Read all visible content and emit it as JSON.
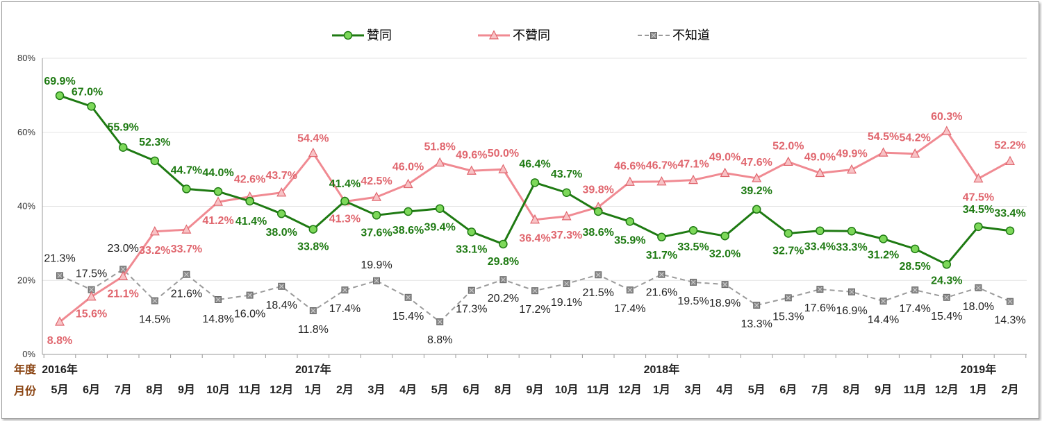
{
  "chart_data": {
    "type": "line",
    "categories": [
      "5月",
      "6月",
      "7月",
      "8月",
      "9月",
      "10月",
      "11月",
      "12月",
      "1月",
      "2月",
      "3月",
      "4月",
      "5月",
      "6月",
      "8月",
      "9月",
      "10月",
      "11月",
      "12月",
      "1月",
      "3月",
      "4月",
      "5月",
      "6月",
      "7月",
      "8月",
      "9月",
      "11月",
      "12月",
      "1月",
      "2月"
    ],
    "years": [
      {
        "label": "2016年",
        "index": 0
      },
      {
        "label": "2017年",
        "index": 8
      },
      {
        "label": "2018年",
        "index": 19
      },
      {
        "label": "2019年",
        "index": 29
      }
    ],
    "row_labels": {
      "year": "年度",
      "month": "月份"
    },
    "yticks": [
      "0%",
      "20%",
      "40%",
      "60%",
      "80%"
    ],
    "ylim": [
      0,
      80
    ],
    "grid": true,
    "legend_position": "top",
    "series": [
      {
        "name": "贊同",
        "color": "#1e7a12",
        "marker": "circle",
        "values": [
          69.9,
          67.0,
          55.9,
          52.3,
          44.7,
          44.0,
          41.4,
          38.0,
          33.8,
          41.4,
          37.6,
          38.6,
          39.4,
          33.1,
          29.8,
          46.4,
          43.7,
          38.6,
          35.9,
          31.7,
          33.5,
          32.0,
          39.2,
          32.7,
          33.4,
          33.3,
          31.2,
          28.5,
          24.3,
          34.5,
          33.4
        ],
        "labels": [
          "69.9%",
          "67.0%",
          "55.9%",
          "52.3%",
          "44.7%",
          "44.0%",
          "41.4%",
          "38.0%",
          "33.8%",
          "41.4%",
          "37.6%",
          "38.6%",
          "39.4%",
          "33.1%",
          "29.8%",
          "46.4%",
          "43.7%",
          "38.6%",
          "35.9%",
          "31.7%",
          "33.5%",
          "32.0%",
          "39.2%",
          "32.7%",
          "33.4%",
          "33.3%",
          "31.2%",
          "28.5%",
          "24.3%",
          "34.5%",
          "33.4%"
        ]
      },
      {
        "name": "不贊同",
        "color": "#f08a92",
        "marker": "triangle",
        "values": [
          8.8,
          15.6,
          21.1,
          33.2,
          33.7,
          41.2,
          42.6,
          43.7,
          54.4,
          41.3,
          42.5,
          46.0,
          51.8,
          49.6,
          50.0,
          36.4,
          37.3,
          39.8,
          46.6,
          46.7,
          47.1,
          49.0,
          47.6,
          52.0,
          49.0,
          49.9,
          54.5,
          54.2,
          60.3,
          47.5,
          52.2
        ],
        "labels": [
          "8.8%",
          "15.6%",
          "21.1%",
          "33.2%",
          "33.7%",
          "41.2%",
          "42.6%",
          "43.7%",
          "54.4%",
          "41.3%",
          "42.5%",
          "46.0%",
          "51.8%",
          "49.6%",
          "50.0%",
          "36.4%",
          "37.3%",
          "39.8%",
          "46.6%",
          "46.7%",
          "47.1%",
          "49.0%",
          "47.6%",
          "52.0%",
          "49.0%",
          "49.9%",
          "54.5%",
          "54.2%",
          "60.3%",
          "47.5%",
          "52.2%"
        ]
      },
      {
        "name": "不知道",
        "color": "#9a9a9a",
        "marker": "square",
        "values": [
          21.3,
          17.5,
          23.0,
          14.5,
          21.6,
          14.8,
          16.0,
          18.4,
          11.8,
          17.4,
          19.9,
          15.4,
          8.8,
          17.3,
          20.2,
          17.2,
          19.1,
          21.5,
          17.4,
          21.6,
          19.5,
          18.9,
          13.3,
          15.3,
          17.6,
          16.9,
          14.4,
          17.4,
          15.4,
          18.0,
          14.3
        ],
        "labels": [
          "21.3%",
          "17.5%",
          "23.0%",
          "14.5%",
          "21.6%",
          "14.8%",
          "16.0%",
          "18.4%",
          "11.8%",
          "17.4%",
          "19.9%",
          "15.4%",
          "8.8%",
          "17.3%",
          "20.2%",
          "17.2%",
          "19.1%",
          "21.5%",
          "17.4%",
          "21.6%",
          "19.5%",
          "18.9%",
          "13.3%",
          "15.3%",
          "17.6%",
          "16.9%",
          "14.4%",
          "17.4%",
          "15.4%",
          "18.0%",
          "14.3%"
        ]
      }
    ]
  }
}
